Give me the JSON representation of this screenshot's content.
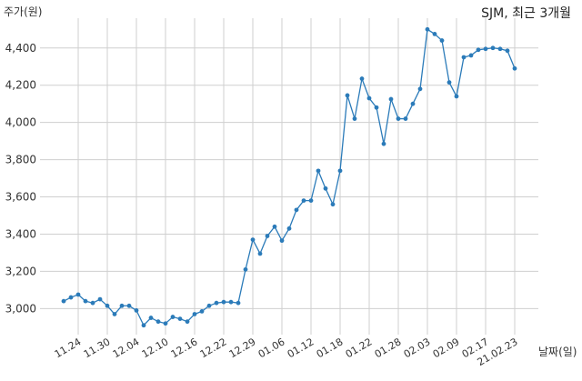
{
  "chart_data": {
    "type": "line",
    "title": "SJM, 최근 3개월",
    "ylabel": "주가(원)",
    "xlabel": "날짜(일)",
    "ylim": [
      2860,
      4560
    ],
    "yticks": [
      3000,
      3200,
      3400,
      3600,
      3800,
      4000,
      4200,
      4400
    ],
    "ytick_labels": [
      "3,000",
      "3,200",
      "3,400",
      "3,600",
      "3,800",
      "4,000",
      "4,200",
      "4,400"
    ],
    "xtick_labels": [
      "11.24",
      "11.30",
      "12.04",
      "12.10",
      "12.16",
      "12.22",
      "12.29",
      "01.06",
      "01.12",
      "01.18",
      "01.22",
      "01.28",
      "02.03",
      "02.09",
      "02.17",
      "21.02.23"
    ],
    "xtick_positions": [
      2,
      6,
      10,
      14,
      18,
      22,
      26,
      30,
      34,
      38,
      42,
      46,
      50,
      54,
      58,
      62
    ],
    "grid": true,
    "line_color": "#2b7bb9",
    "series": [
      {
        "values": [
          3040,
          3060,
          3075,
          3040,
          3030,
          3050,
          3015,
          2970,
          3015,
          3015,
          2990,
          2910,
          2950,
          2930,
          2920,
          2955,
          2945,
          2930,
          2970,
          2985,
          3015,
          3030,
          3035,
          3035,
          3030,
          3210,
          3370,
          3295,
          3390,
          3440,
          3365,
          3430,
          3530,
          3580,
          3580,
          3740,
          3645,
          3560,
          3740,
          4145,
          4020,
          4235,
          4130,
          4080,
          3885,
          4125,
          4020,
          4020,
          4100,
          4180,
          4500,
          4475,
          4440,
          4215,
          4140,
          4350,
          4360,
          4390,
          4395,
          4400,
          4395,
          4385,
          4290
        ]
      }
    ]
  }
}
